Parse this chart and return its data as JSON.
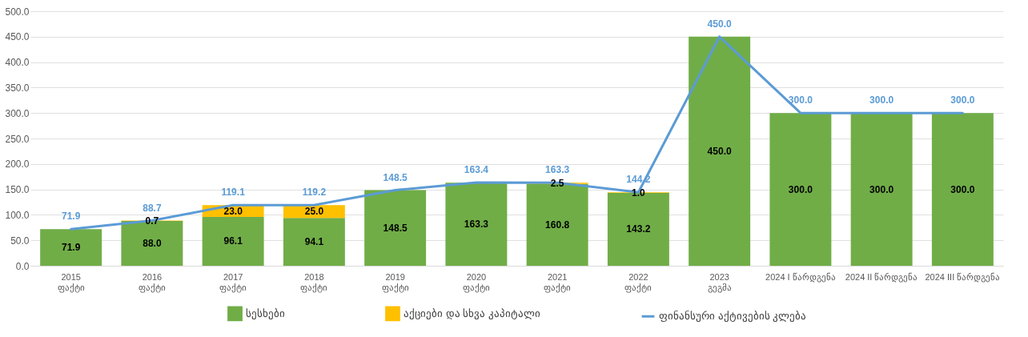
{
  "chart_data": {
    "type": "bar",
    "stacked": true,
    "categories": [
      "2015\nფაქტი",
      "2016\nფაქტი",
      "2017\nფაქტი",
      "2018\nფაქტი",
      "2019\nფაქტი",
      "2020\nფაქტი",
      "2021\nფაქტი",
      "2022\nფაქტი",
      "2023\nგეგმა",
      "2024 I წარდგენა",
      "2024 II წარდგენა",
      "2024 III წარდგენა"
    ],
    "series": [
      {
        "name": "სესხები",
        "color": "#70ad47",
        "values": [
          71.9,
          88.0,
          96.1,
          94.1,
          148.5,
          163.3,
          160.8,
          143.2,
          450.0,
          300.0,
          300.0,
          300.0
        ],
        "value_labels": [
          "71.9",
          "88.0",
          "96.1",
          "94.1",
          "148.5",
          "163.3",
          "160.8",
          "143.2",
          "450.0",
          "300.0",
          "300.0",
          "300.0"
        ]
      },
      {
        "name": "აქციები და სხვა კაპიტალი",
        "color": "#ffc000",
        "values": [
          null,
          0.7,
          23.0,
          25.0,
          null,
          null,
          2.5,
          1.0,
          null,
          null,
          null,
          null
        ],
        "value_labels": [
          null,
          "0.7",
          "23.0",
          "25.0",
          null,
          null,
          "2.5",
          "1.0",
          null,
          null,
          null,
          null
        ]
      },
      {
        "name": "ფინანსური აქტივების კლება",
        "type": "line",
        "color": "#5b9bd5",
        "values": [
          71.9,
          88.7,
          119.1,
          119.2,
          148.5,
          163.4,
          163.3,
          144.2,
          450.0,
          300.0,
          300.0,
          300.0
        ],
        "value_labels": [
          "71.9",
          "88.7",
          "119.1",
          "119.2",
          "148.5",
          "163.4",
          "163.3",
          "144.2",
          "450.0",
          "300.0",
          "300.0",
          "300.0"
        ]
      }
    ],
    "ylim": [
      0,
      500
    ],
    "yticks": [
      {
        "value": 0,
        "label": "0.0"
      },
      {
        "value": 50,
        "label": "50.0"
      },
      {
        "value": 100,
        "label": "100.0"
      },
      {
        "value": 150,
        "label": "150.0"
      },
      {
        "value": 200,
        "label": "200.0"
      },
      {
        "value": 250,
        "label": "250.0"
      },
      {
        "value": 300,
        "label": "300.0"
      },
      {
        "value": 350,
        "label": "350.0"
      },
      {
        "value": 400,
        "label": "400.0"
      },
      {
        "value": 450,
        "label": "450.0"
      },
      {
        "value": 500,
        "label": "500.0"
      }
    ],
    "grid": "y",
    "legend": "bottom"
  }
}
